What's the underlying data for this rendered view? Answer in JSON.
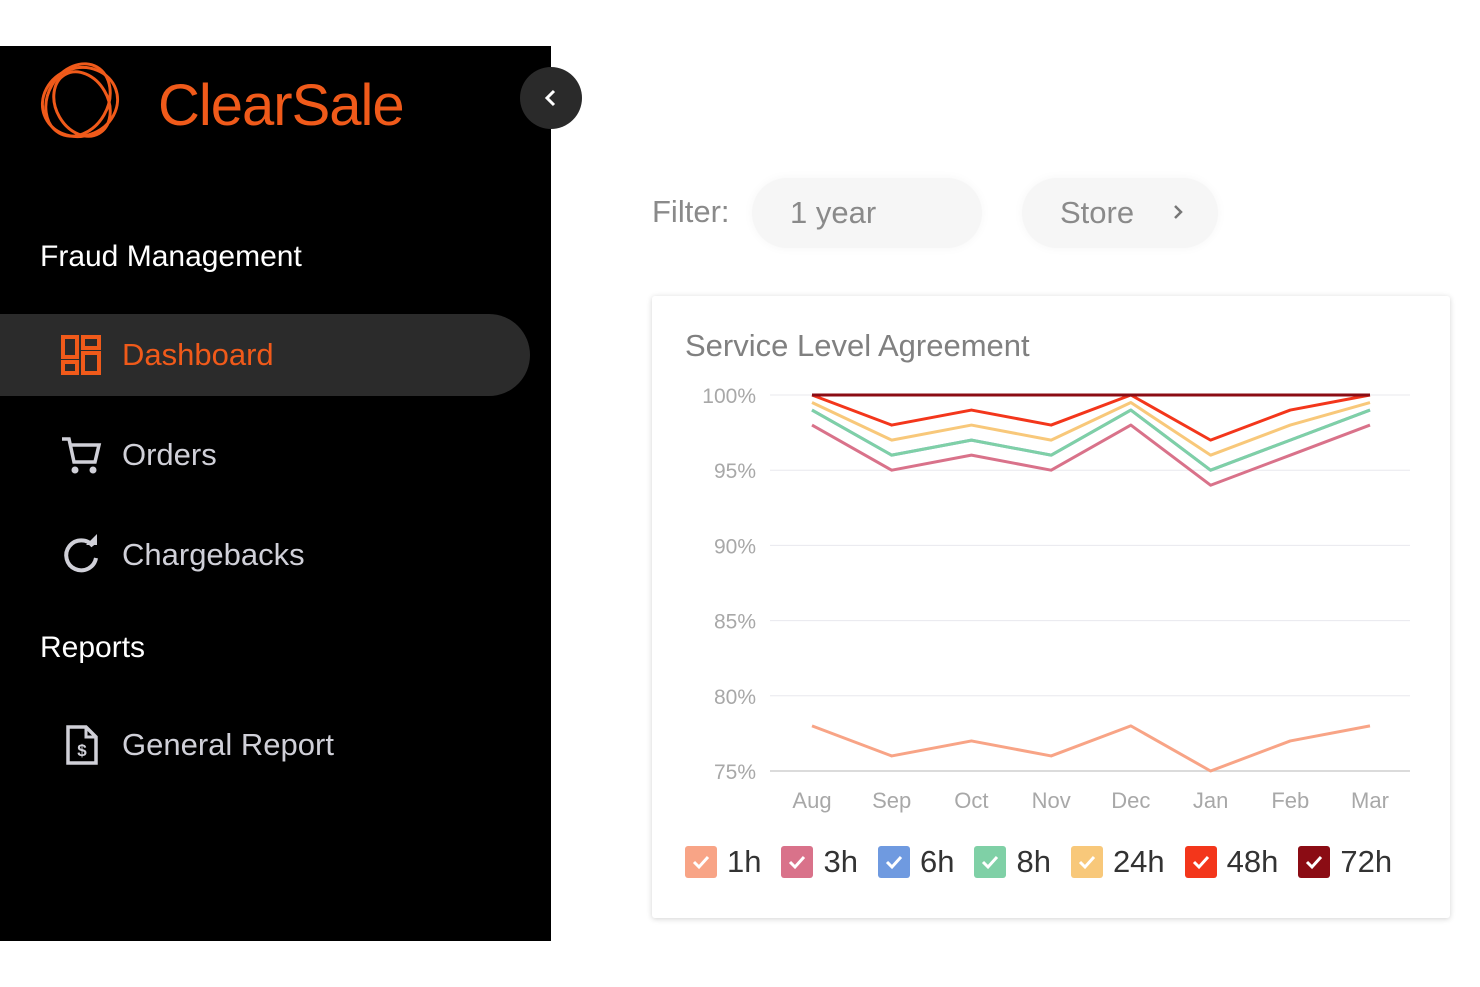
{
  "sidebar": {
    "brand": "ClearSale",
    "brand_color": "#f05a1a",
    "sections": [
      {
        "title": "Fraud Management",
        "items": [
          {
            "label": "Dashboard",
            "icon": "dashboard-icon",
            "active": true
          },
          {
            "label": "Orders",
            "icon": "cart-icon",
            "active": false
          },
          {
            "label": "Chargebacks",
            "icon": "refresh-icon",
            "active": false
          }
        ]
      },
      {
        "title": "Reports",
        "items": [
          {
            "label": "General Report",
            "icon": "document-dollar-icon",
            "active": false
          }
        ]
      }
    ]
  },
  "filters": {
    "label": "Filter:",
    "period": "1 year",
    "store": "Store"
  },
  "card": {
    "title": "Service Level Agreement"
  },
  "chart_data": {
    "type": "line",
    "title": "Service Level Agreement",
    "x": [
      "Aug",
      "Sep",
      "Oct",
      "Nov",
      "Dec",
      "Jan",
      "Feb",
      "Mar"
    ],
    "ylim": [
      75,
      100
    ],
    "yticks": [
      100,
      95,
      90,
      85,
      80,
      75
    ],
    "ytick_labels": [
      "100%",
      "95%",
      "90%",
      "85%",
      "80%",
      "75%"
    ],
    "grid": true,
    "legend_position": "bottom",
    "series": [
      {
        "name": "1h",
        "color": "#f8a486",
        "values": [
          78,
          76,
          77,
          76,
          78,
          75,
          77,
          78
        ]
      },
      {
        "name": "3h",
        "color": "#d9728a",
        "values": [
          98,
          95,
          96,
          95,
          98,
          94,
          96,
          98
        ]
      },
      {
        "name": "6h",
        "color": "#6f9ae0",
        "values": [
          99,
          96,
          97,
          96,
          99,
          95,
          97,
          99
        ]
      },
      {
        "name": "8h",
        "color": "#7fd0a6",
        "values": [
          99,
          96,
          97,
          96,
          99,
          95,
          97,
          99
        ]
      },
      {
        "name": "24h",
        "color": "#f8c87a",
        "values": [
          99.5,
          97,
          98,
          97,
          99.5,
          96,
          98,
          99.5
        ]
      },
      {
        "name": "48h",
        "color": "#f3361b",
        "values": [
          100,
          98,
          99,
          98,
          100,
          97,
          99,
          100
        ]
      },
      {
        "name": "72h",
        "color": "#8b0c14",
        "values": [
          100,
          100,
          100,
          100,
          100,
          100,
          100,
          100
        ]
      }
    ]
  }
}
